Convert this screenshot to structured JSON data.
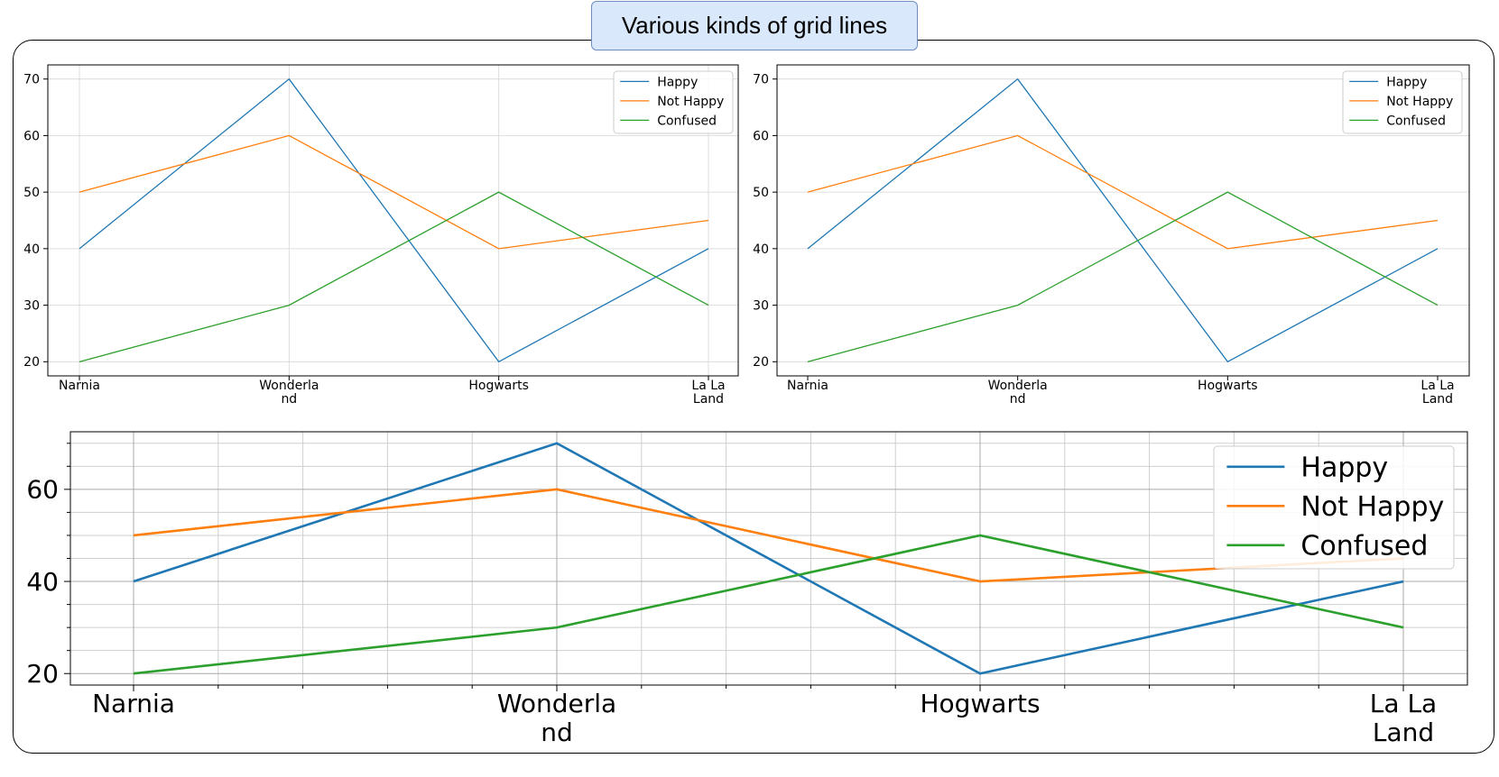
{
  "figure_title": "Various kinds of grid lines",
  "colors": {
    "happy": "#1f77b4",
    "not_happy": "#ff7f0e",
    "confused": "#2ca02c",
    "grid": "#b0b0b0"
  },
  "chart_data": [
    {
      "type": "line",
      "categories": [
        "Narnia",
        "Wonderla\nnd",
        "Hogwarts",
        "La La\nLand"
      ],
      "series": [
        {
          "name": "Happy",
          "values": [
            40,
            70,
            20,
            40
          ]
        },
        {
          "name": "Not Happy",
          "values": [
            50,
            60,
            40,
            45
          ]
        },
        {
          "name": "Confused",
          "values": [
            20,
            30,
            50,
            30
          ]
        }
      ],
      "yticks": [
        20,
        30,
        40,
        50,
        60,
        70
      ],
      "ylim": [
        17.5,
        72.5
      ],
      "grid": "major x and y",
      "legend": "top-right"
    },
    {
      "type": "line",
      "categories": [
        "Narnia",
        "Wonderla\nnd",
        "Hogwarts",
        "La La\nLand"
      ],
      "series": [
        {
          "name": "Happy",
          "values": [
            40,
            70,
            20,
            40
          ]
        },
        {
          "name": "Not Happy",
          "values": [
            50,
            60,
            40,
            45
          ]
        },
        {
          "name": "Confused",
          "values": [
            20,
            30,
            50,
            30
          ]
        }
      ],
      "yticks": [
        20,
        30,
        40,
        50,
        60,
        70
      ],
      "ylim": [
        17.5,
        72.5
      ],
      "grid": "major y only",
      "legend": "top-right"
    },
    {
      "type": "line",
      "categories": [
        "Narnia",
        "Wonderla\nnd",
        "Hogwarts",
        "La La\nLand"
      ],
      "series": [
        {
          "name": "Happy",
          "values": [
            40,
            70,
            20,
            40
          ]
        },
        {
          "name": "Not Happy",
          "values": [
            50,
            60,
            40,
            45
          ]
        },
        {
          "name": "Confused",
          "values": [
            20,
            30,
            50,
            30
          ]
        }
      ],
      "yticks": [
        20,
        40,
        60
      ],
      "ylim": [
        17.5,
        72.5
      ],
      "grid": "major and minor x and y",
      "legend": "top-right"
    }
  ]
}
